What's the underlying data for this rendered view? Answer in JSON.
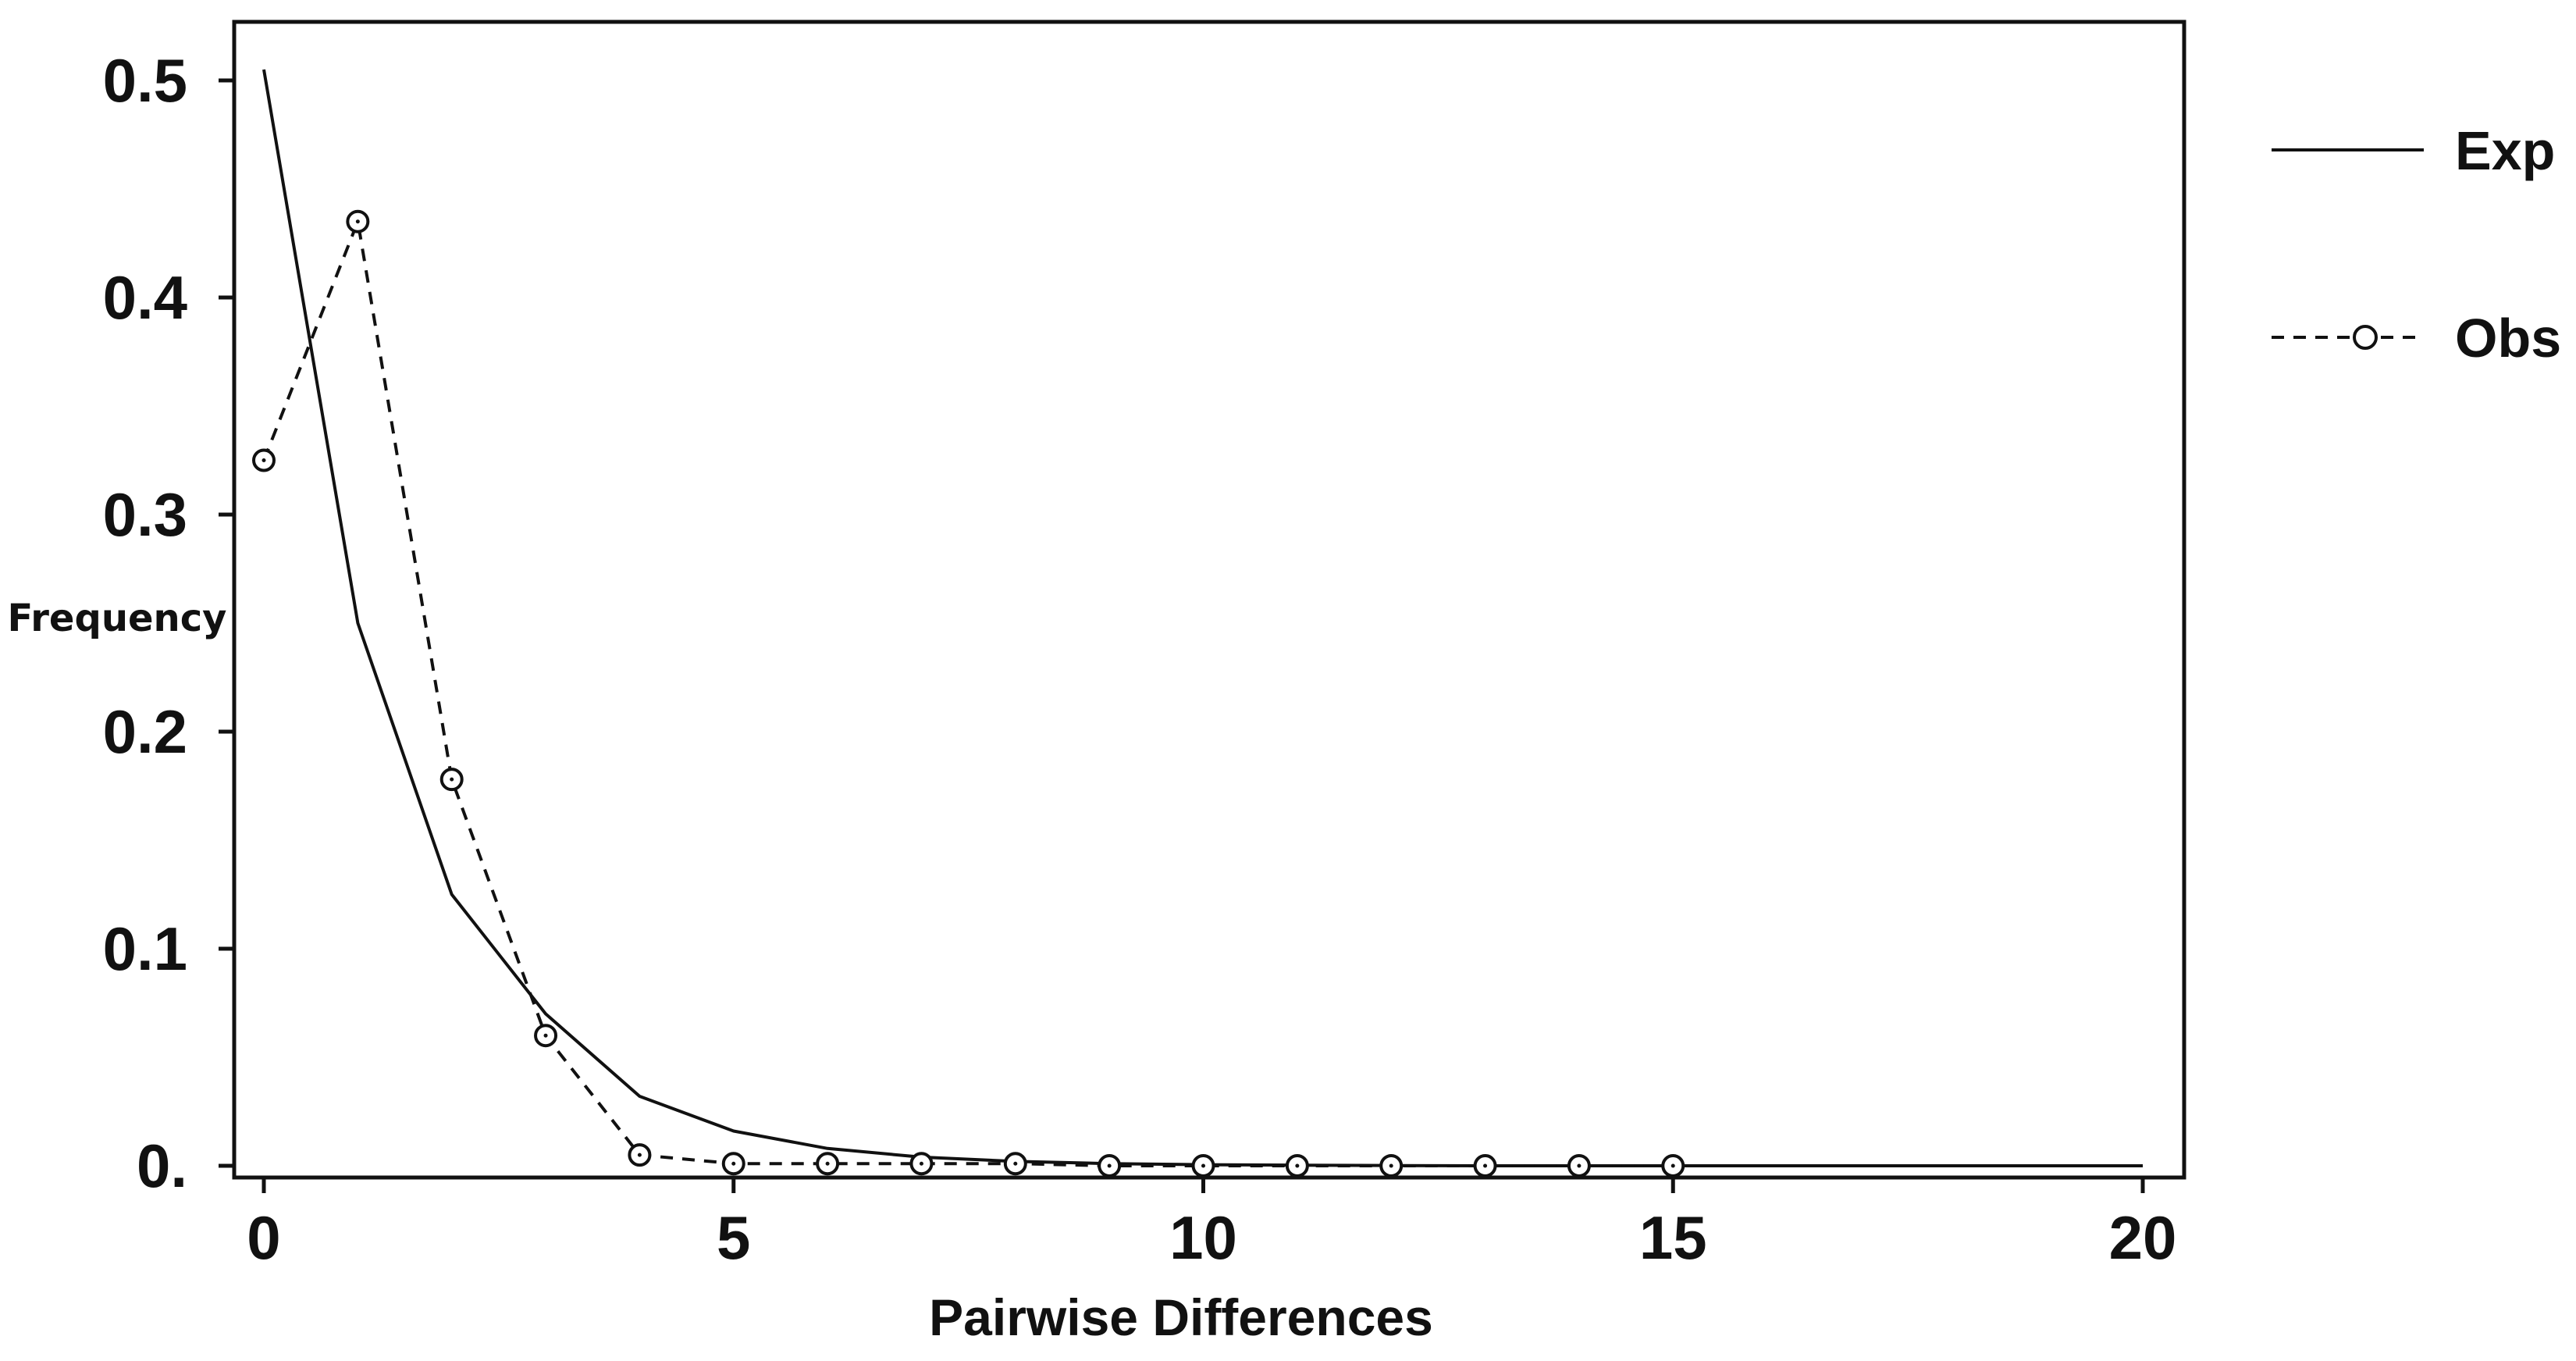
{
  "chart_data": {
    "type": "line",
    "xlabel": "Pairwise Differences",
    "ylabel": "Frequency",
    "xlim": [
      0,
      20
    ],
    "ylim": [
      0,
      0.5
    ],
    "x_ticks": [
      0,
      5,
      10,
      15,
      20
    ],
    "x_tick_labels": [
      "0",
      "5",
      "10",
      "15",
      "20"
    ],
    "y_ticks": [
      0,
      0.1,
      0.2,
      0.3,
      0.4,
      0.5
    ],
    "y_tick_labels": [
      "0.",
      "0.1",
      "0.2",
      "0.3",
      "0.4",
      "0.5"
    ],
    "grid": false,
    "legend_position": "right",
    "series": [
      {
        "name": "Exp",
        "style": "solid",
        "marker": "none",
        "color": "#111111",
        "x": [
          0,
          1,
          2,
          3,
          4,
          5,
          6,
          7,
          8,
          9,
          10,
          11,
          12,
          13,
          14,
          15,
          16,
          17,
          18,
          19,
          20
        ],
        "values": [
          0.505,
          0.25,
          0.125,
          0.07,
          0.032,
          0.016,
          0.008,
          0.004,
          0.002,
          0.001,
          0.0005,
          0.0003,
          0.0001,
          0,
          0,
          0,
          0,
          0,
          0,
          0,
          0
        ]
      },
      {
        "name": "Obs",
        "style": "dashed",
        "marker": "circle",
        "color": "#111111",
        "x": [
          0,
          1,
          2,
          3,
          4,
          5,
          6,
          7,
          8,
          9,
          10,
          11,
          12,
          13,
          14,
          15
        ],
        "values": [
          0.325,
          0.435,
          0.178,
          0.06,
          0.005,
          0.001,
          0.001,
          0.001,
          0.001,
          0,
          0,
          0,
          0,
          0,
          0,
          0
        ]
      }
    ]
  }
}
